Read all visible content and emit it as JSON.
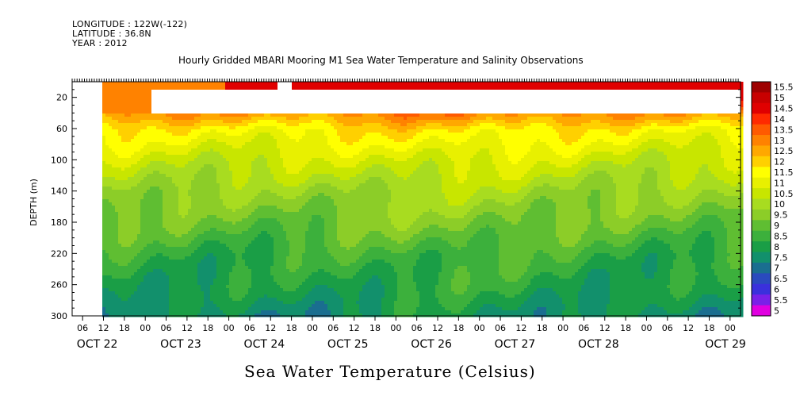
{
  "header": {
    "longitude": "LONGITUDE : 122W(-122)",
    "latitude": "LATITUDE : 36.8N",
    "year": "YEAR : 2012"
  },
  "chart_data": {
    "type": "heatmap",
    "title": "Hourly Gridded MBARI Mooring M1 Sea Water Temperature and Salinity Observations",
    "bottom_title": "Sea Water Temperature (Celsius)",
    "ylabel": "DEPTH (m)",
    "ylim": [
      300,
      0
    ],
    "y_ticks": [
      20,
      60,
      100,
      140,
      180,
      220,
      260,
      300
    ],
    "x_hour_ticks": [
      "06",
      "12",
      "18",
      "00",
      "06",
      "12",
      "18",
      "00",
      "06",
      "12",
      "18",
      "00",
      "06",
      "12",
      "18",
      "00",
      "06",
      "12",
      "18",
      "00",
      "06",
      "12",
      "18",
      "00",
      "06",
      "12",
      "18",
      "00",
      "06",
      "12",
      "18",
      "00"
    ],
    "x_day_labels": [
      "OCT 22",
      "OCT 23",
      "OCT 24",
      "OCT 25",
      "OCT 26",
      "OCT 27",
      "OCT 28",
      "OCT 29"
    ],
    "colorbar_levels": [
      "15.5",
      "15",
      "14.5",
      "14",
      "13.5",
      "13",
      "12.5",
      "12",
      "11.5",
      "11",
      "10.5",
      "10",
      "9.5",
      "9",
      "8.5",
      "8",
      "7.5",
      "7",
      "6.5",
      "6",
      "5.5",
      "5"
    ],
    "colorbar_colors": [
      "#9e0000",
      "#c80000",
      "#e00000",
      "#ff2a00",
      "#ff5a00",
      "#ff8200",
      "#ffa800",
      "#ffd000",
      "#ffff00",
      "#e8f000",
      "#c8e600",
      "#a8dc20",
      "#8ccd28",
      "#5fbe32",
      "#3cb03c",
      "#1a9e46",
      "#12906c",
      "#1a6e90",
      "#2a4abe",
      "#3a30dc",
      "#7a20e8",
      "#e000e0"
    ],
    "depth_bands": [
      {
        "depth": 20,
        "value": 14.6
      },
      {
        "depth": 40,
        "value": 12.8
      },
      {
        "depth": 60,
        "value": 11.6
      },
      {
        "depth": 100,
        "value": 10.6
      },
      {
        "depth": 140,
        "value": 9.8
      },
      {
        "depth": 180,
        "value": 9.2
      },
      {
        "depth": 220,
        "value": 8.5
      },
      {
        "depth": 260,
        "value": 8.1
      },
      {
        "depth": 300,
        "value": 7.6
      }
    ]
  }
}
